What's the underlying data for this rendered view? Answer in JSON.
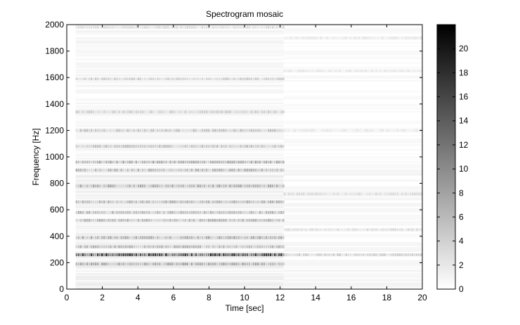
{
  "chart_data": {
    "type": "heatmap",
    "title": "Spectrogram mosaic",
    "xlabel": "Time [sec]",
    "ylabel": "Frequency [Hz]",
    "xlim": [
      0,
      20
    ],
    "ylim": [
      0,
      2000
    ],
    "x_ticks": [
      0,
      2,
      4,
      6,
      8,
      10,
      12,
      14,
      16,
      18,
      20
    ],
    "y_ticks": [
      0,
      200,
      400,
      600,
      800,
      1000,
      1200,
      1400,
      1600,
      1800,
      2000
    ],
    "colorbar": {
      "range": [
        0,
        22
      ],
      "ticks": [
        0,
        2,
        4,
        6,
        8,
        10,
        12,
        14,
        16,
        18,
        20
      ],
      "colormap": "gray-reversed",
      "low_color": "#ffffff",
      "high_color": "#000000"
    },
    "segments": [
      {
        "time_range": [
          0.5,
          12.2
        ],
        "character": "strong harmonic bands"
      },
      {
        "time_range": [
          12.2,
          20
        ],
        "character": "faint broadband texture"
      }
    ],
    "bands": [
      {
        "freq": 260,
        "intensity": 16,
        "time_range": [
          0.5,
          12.2
        ]
      },
      {
        "freq": 190,
        "intensity": 7,
        "time_range": [
          0.5,
          12.2
        ]
      },
      {
        "freq": 320,
        "intensity": 6,
        "time_range": [
          0.5,
          12.2
        ]
      },
      {
        "freq": 390,
        "intensity": 7,
        "time_range": [
          0.5,
          12.2
        ]
      },
      {
        "freq": 520,
        "intensity": 6,
        "time_range": [
          0.5,
          12.2
        ]
      },
      {
        "freq": 580,
        "intensity": 6,
        "time_range": [
          0.5,
          12.2
        ]
      },
      {
        "freq": 660,
        "intensity": 6,
        "time_range": [
          0.5,
          12.2
        ]
      },
      {
        "freq": 780,
        "intensity": 7,
        "time_range": [
          0.5,
          12.2
        ]
      },
      {
        "freq": 900,
        "intensity": 6,
        "time_range": [
          0.5,
          12.2
        ]
      },
      {
        "freq": 960,
        "intensity": 7,
        "time_range": [
          0.5,
          12.2
        ]
      },
      {
        "freq": 1080,
        "intensity": 5,
        "time_range": [
          0.5,
          12.2
        ]
      },
      {
        "freq": 1200,
        "intensity": 5,
        "time_range": [
          0.5,
          12.2
        ]
      },
      {
        "freq": 1340,
        "intensity": 4,
        "time_range": [
          0.5,
          12.2
        ]
      },
      {
        "freq": 1590,
        "intensity": 4,
        "time_range": [
          0.5,
          12.2
        ]
      },
      {
        "freq": 1980,
        "intensity": 3,
        "time_range": [
          0.5,
          12.2
        ]
      },
      {
        "freq": 260,
        "intensity": 4,
        "time_range": [
          12.2,
          20
        ]
      },
      {
        "freq": 450,
        "intensity": 3,
        "time_range": [
          12.2,
          20
        ]
      },
      {
        "freq": 720,
        "intensity": 3,
        "time_range": [
          12.2,
          20
        ]
      },
      {
        "freq": 1200,
        "intensity": 2,
        "time_range": [
          12.2,
          20
        ]
      },
      {
        "freq": 1650,
        "intensity": 2,
        "time_range": [
          12.2,
          20
        ]
      },
      {
        "freq": 1900,
        "intensity": 2,
        "time_range": [
          12.2,
          20
        ]
      }
    ]
  }
}
